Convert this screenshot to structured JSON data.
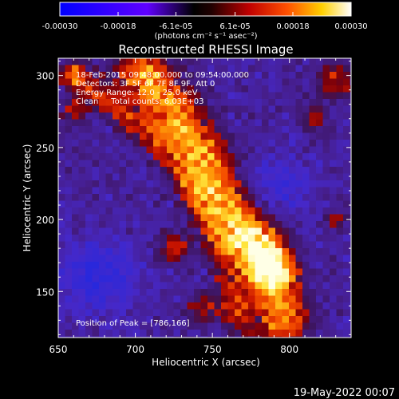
{
  "colorbar": {
    "ticks": [
      "-0.00030",
      "-0.00018",
      "-6.1e-05",
      "6.1e-05",
      "0.00018",
      "0.00030"
    ],
    "tick_values": [
      -0.0003,
      -0.00018,
      -6.1e-05,
      6.1e-05,
      0.00018,
      0.0003
    ],
    "unit_label": "(photons cm⁻² s⁻¹ asec⁻²)",
    "range": [
      -0.0003,
      0.0003
    ],
    "colors": [
      "#0000ff",
      "#5a00ff",
      "#000000",
      "#8b0000",
      "#ff0000",
      "#ff8c00",
      "#ffff00",
      "#ffffff"
    ]
  },
  "annotations": {
    "time_range": "18-Feb-2015 09:48:00.000 to 09:54:00.000",
    "detectors": "Detectors: 3F 5F 6F 7F 8F 9F, Att 0",
    "energy": "Energy Range: 12.0 - 25.0 keV",
    "clean": "Clean     Total counts: 6.03E+03",
    "peak": "Position of Peak = [786,166]"
  },
  "footer": {
    "timestamp": "19-May-2022 00:07"
  },
  "chart_data": {
    "type": "heatmap",
    "title": "Reconstructed RHESSI Image",
    "xlabel": "Heliocentric X (arcsec)",
    "ylabel": "Heliocentric Y (arcsec)",
    "xlim": [
      650,
      840
    ],
    "ylim": [
      118,
      312
    ],
    "x_ticks": [
      650,
      700,
      750,
      800
    ],
    "y_ticks": [
      150,
      200,
      250,
      300
    ],
    "x_tick_labels": [
      "650",
      "700",
      "750",
      "800"
    ],
    "y_tick_labels": [
      "150",
      "200",
      "250",
      "300"
    ],
    "colorbar_range": [
      -0.0003,
      0.0003
    ],
    "peak": [
      786,
      166
    ],
    "description_units": "photons cm-2 s-1 asec-2"
  }
}
